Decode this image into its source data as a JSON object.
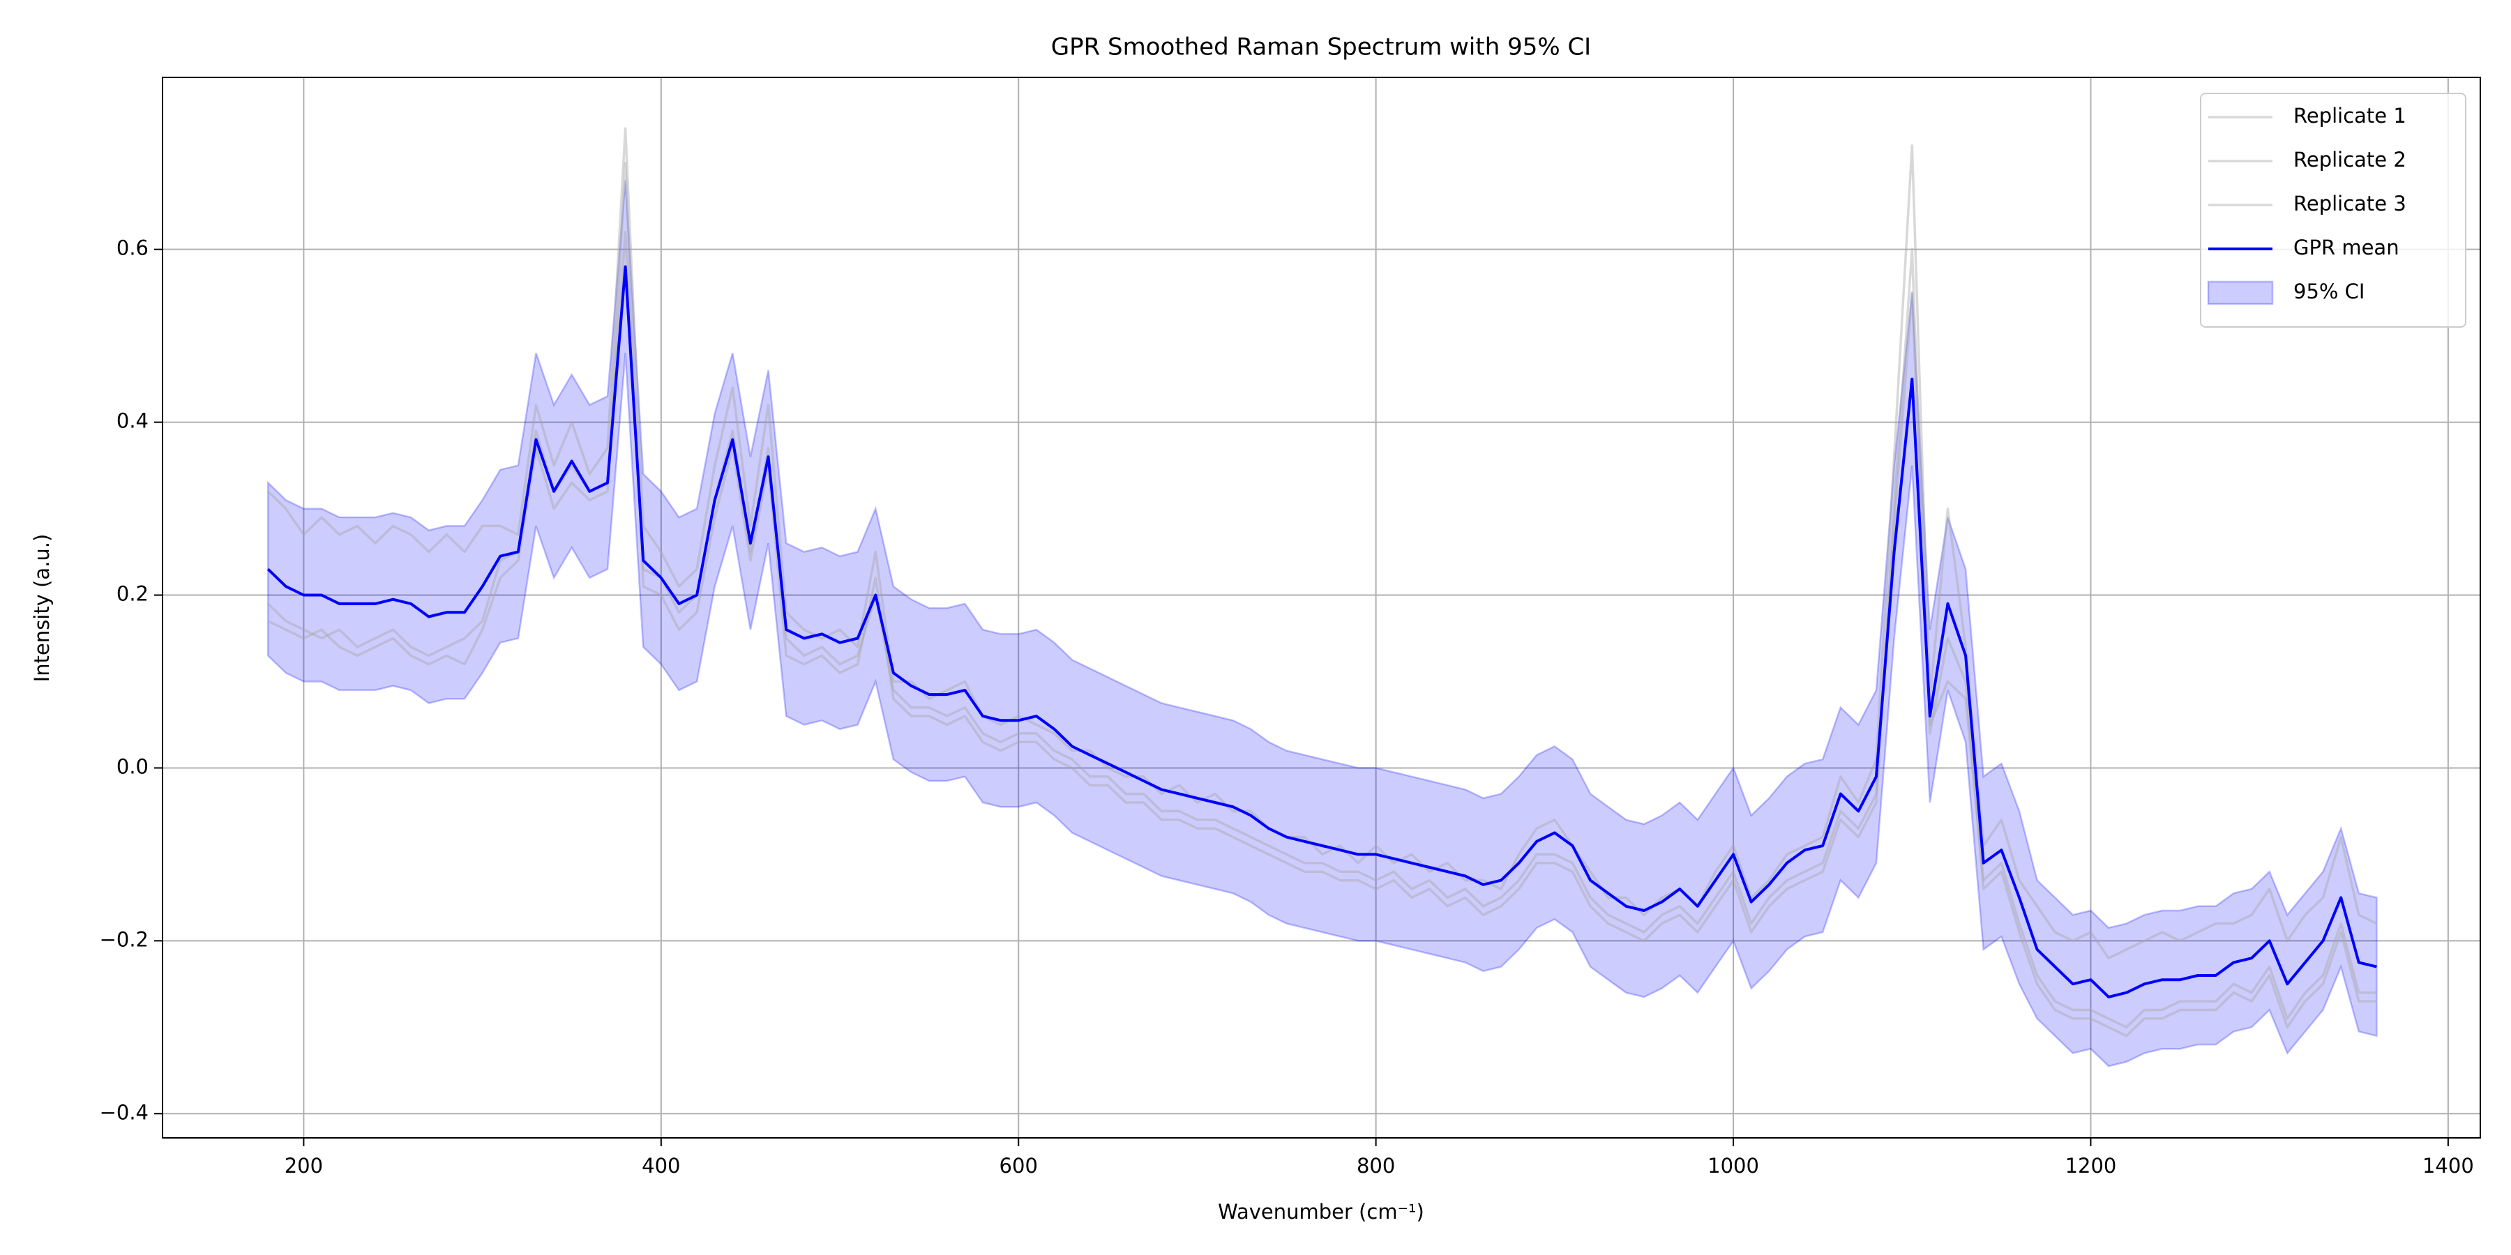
{
  "chart_data": {
    "type": "line",
    "title": "GPR Smoothed Raman Spectrum with 95% CI",
    "xlabel": "Wavenumber (cm⁻¹)",
    "ylabel": "Intensity (a.u.)",
    "xlim": [
      121,
      1418
    ],
    "ylim": [
      -0.428,
      0.799
    ],
    "xticks": [
      200,
      400,
      600,
      800,
      1000,
      1200,
      1400
    ],
    "yticks": [
      {
        "value": -0.4,
        "label": "−0.4"
      },
      {
        "value": -0.2,
        "label": "−0.2"
      },
      {
        "value": 0.0,
        "label": "0.0"
      },
      0.2,
      0.4,
      0.6
    ],
    "grid": true,
    "legend": "upper right",
    "x": [
      180,
      190,
      200,
      210,
      220,
      230,
      240,
      250,
      260,
      270,
      280,
      290,
      300,
      310,
      320,
      330,
      340,
      350,
      360,
      370,
      380,
      390,
      400,
      410,
      420,
      430,
      440,
      450,
      460,
      470,
      480,
      490,
      500,
      510,
      520,
      530,
      540,
      550,
      560,
      570,
      580,
      590,
      600,
      610,
      620,
      630,
      640,
      650,
      660,
      670,
      680,
      690,
      700,
      710,
      720,
      730,
      740,
      750,
      760,
      770,
      780,
      790,
      800,
      810,
      820,
      830,
      840,
      850,
      860,
      870,
      880,
      890,
      900,
      910,
      920,
      930,
      940,
      950,
      960,
      970,
      980,
      990,
      1000,
      1010,
      1020,
      1030,
      1040,
      1050,
      1060,
      1070,
      1080,
      1090,
      1100,
      1110,
      1120,
      1130,
      1140,
      1150,
      1160,
      1170,
      1180,
      1190,
      1200,
      1210,
      1220,
      1230,
      1240,
      1250,
      1260,
      1270,
      1280,
      1290,
      1300,
      1310,
      1320,
      1330,
      1340,
      1350,
      1360
    ],
    "series": [
      {
        "name": "Replicate 1",
        "color": "#a9a9a9",
        "values": [
          0.32,
          0.3,
          0.27,
          0.29,
          0.27,
          0.28,
          0.26,
          0.28,
          0.27,
          0.25,
          0.27,
          0.25,
          0.28,
          0.28,
          0.27,
          0.42,
          0.35,
          0.4,
          0.34,
          0.37,
          0.74,
          0.28,
          0.25,
          0.21,
          0.23,
          0.35,
          0.44,
          0.28,
          0.42,
          0.18,
          0.16,
          0.15,
          0.16,
          0.14,
          0.25,
          0.1,
          0.1,
          0.08,
          0.09,
          0.1,
          0.06,
          0.05,
          0.06,
          0.05,
          0.04,
          0.02,
          0.02,
          0,
          -0.01,
          -0.01,
          -0.03,
          -0.02,
          -0.04,
          -0.03,
          -0.05,
          -0.05,
          -0.07,
          -0.08,
          -0.08,
          -0.1,
          -0.09,
          -0.11,
          -0.09,
          -0.11,
          -0.1,
          -0.12,
          -0.11,
          -0.13,
          -0.13,
          -0.14,
          -0.1,
          -0.07,
          -0.06,
          -0.09,
          -0.12,
          -0.15,
          -0.15,
          -0.17,
          -0.15,
          -0.14,
          -0.16,
          -0.12,
          -0.09,
          -0.15,
          -0.13,
          -0.1,
          -0.09,
          -0.08,
          -0.01,
          -0.04,
          0.01,
          0.36,
          0.72,
          0.08,
          0.3,
          0.14,
          -0.09,
          -0.06,
          -0.13,
          -0.16,
          -0.19,
          -0.2,
          -0.19,
          -0.22,
          -0.21,
          -0.2,
          -0.19,
          -0.2,
          -0.19,
          -0.18,
          -0.18,
          -0.17,
          -0.14,
          -0.2,
          -0.17,
          -0.15,
          -0.08,
          -0.17,
          -0.18
        ]
      },
      {
        "name": "Replicate 2",
        "color": "#a9a9a9",
        "values": [
          0.17,
          0.16,
          0.15,
          0.16,
          0.14,
          0.13,
          0.14,
          0.15,
          0.13,
          0.12,
          0.13,
          0.12,
          0.16,
          0.22,
          0.24,
          0.37,
          0.3,
          0.33,
          0.31,
          0.32,
          0.7,
          0.21,
          0.2,
          0.16,
          0.18,
          0.29,
          0.37,
          0.24,
          0.35,
          0.13,
          0.12,
          0.13,
          0.11,
          0.12,
          0.22,
          0.08,
          0.06,
          0.06,
          0.05,
          0.06,
          0.03,
          0.02,
          0.03,
          0.03,
          0.01,
          0,
          -0.02,
          -0.02,
          -0.04,
          -0.04,
          -0.06,
          -0.06,
          -0.07,
          -0.07,
          -0.08,
          -0.09,
          -0.1,
          -0.11,
          -0.12,
          -0.12,
          -0.13,
          -0.13,
          -0.14,
          -0.13,
          -0.15,
          -0.14,
          -0.16,
          -0.15,
          -0.17,
          -0.16,
          -0.14,
          -0.11,
          -0.11,
          -0.12,
          -0.16,
          -0.18,
          -0.19,
          -0.2,
          -0.18,
          -0.17,
          -0.19,
          -0.16,
          -0.13,
          -0.19,
          -0.16,
          -0.14,
          -0.13,
          -0.12,
          -0.06,
          -0.08,
          -0.04,
          0.3,
          0.6,
          0.04,
          0.15,
          0.1,
          -0.14,
          -0.12,
          -0.19,
          -0.25,
          -0.28,
          -0.29,
          -0.29,
          -0.3,
          -0.31,
          -0.29,
          -0.29,
          -0.28,
          -0.28,
          -0.28,
          -0.26,
          -0.27,
          -0.24,
          -0.3,
          -0.27,
          -0.25,
          -0.19,
          -0.27,
          -0.27
        ]
      },
      {
        "name": "Replicate 3",
        "color": "#a9a9a9",
        "values": [
          0.19,
          0.17,
          0.16,
          0.15,
          0.16,
          0.14,
          0.15,
          0.16,
          0.14,
          0.13,
          0.14,
          0.15,
          0.17,
          0.24,
          0.25,
          0.39,
          0.32,
          0.35,
          0.32,
          0.33,
          0.62,
          0.23,
          0.22,
          0.18,
          0.2,
          0.31,
          0.39,
          0.25,
          0.37,
          0.15,
          0.13,
          0.14,
          0.12,
          0.13,
          0.2,
          0.09,
          0.07,
          0.07,
          0.06,
          0.07,
          0.04,
          0.03,
          0.04,
          0.04,
          0.02,
          0.01,
          -0.01,
          -0.01,
          -0.03,
          -0.03,
          -0.05,
          -0.05,
          -0.06,
          -0.06,
          -0.07,
          -0.08,
          -0.09,
          -0.1,
          -0.11,
          -0.11,
          -0.12,
          -0.12,
          -0.13,
          -0.12,
          -0.14,
          -0.13,
          -0.15,
          -0.14,
          -0.16,
          -0.15,
          -0.13,
          -0.1,
          -0.1,
          -0.11,
          -0.15,
          -0.17,
          -0.18,
          -0.19,
          -0.17,
          -0.16,
          -0.18,
          -0.15,
          -0.12,
          -0.18,
          -0.15,
          -0.13,
          -0.12,
          -0.11,
          -0.05,
          -0.07,
          -0.03,
          0.28,
          0.55,
          0.05,
          0.1,
          0.08,
          -0.13,
          -0.11,
          -0.18,
          -0.24,
          -0.27,
          -0.28,
          -0.28,
          -0.29,
          -0.3,
          -0.28,
          -0.28,
          -0.27,
          -0.27,
          -0.27,
          -0.25,
          -0.26,
          -0.23,
          -0.29,
          -0.26,
          -0.24,
          -0.18,
          -0.26,
          -0.26
        ]
      },
      {
        "name": "GPR mean",
        "color": "#0000ff",
        "values": [
          0.23,
          0.21,
          0.2,
          0.2,
          0.19,
          0.19,
          0.19,
          0.195,
          0.19,
          0.175,
          0.18,
          0.18,
          0.21,
          0.245,
          0.25,
          0.38,
          0.32,
          0.355,
          0.32,
          0.33,
          0.58,
          0.24,
          0.22,
          0.19,
          0.2,
          0.31,
          0.38,
          0.26,
          0.36,
          0.16,
          0.15,
          0.155,
          0.145,
          0.15,
          0.2,
          0.11,
          0.095,
          0.085,
          0.085,
          0.09,
          0.06,
          0.055,
          0.055,
          0.06,
          0.045,
          0.025,
          0.015,
          0.005,
          -0.005,
          -0.015,
          -0.025,
          -0.03,
          -0.035,
          -0.04,
          -0.045,
          -0.055,
          -0.07,
          -0.08,
          -0.085,
          -0.09,
          -0.095,
          -0.1,
          -0.1,
          -0.105,
          -0.11,
          -0.115,
          -0.12,
          -0.125,
          -0.135,
          -0.13,
          -0.11,
          -0.085,
          -0.075,
          -0.09,
          -0.13,
          -0.145,
          -0.16,
          -0.165,
          -0.155,
          -0.14,
          -0.16,
          -0.13,
          -0.1,
          -0.155,
          -0.135,
          -0.11,
          -0.095,
          -0.09,
          -0.03,
          -0.05,
          -0.01,
          0.25,
          0.45,
          0.06,
          0.19,
          0.13,
          -0.11,
          -0.095,
          -0.15,
          -0.21,
          -0.23,
          -0.25,
          -0.245,
          -0.265,
          -0.26,
          -0.25,
          -0.245,
          -0.245,
          -0.24,
          -0.24,
          -0.225,
          -0.22,
          -0.2,
          -0.25,
          -0.225,
          -0.2,
          -0.15,
          -0.225,
          -0.23
        ]
      }
    ],
    "band": {
      "name": "95% CI",
      "color": "#0000ff",
      "upper": [
        0.33,
        0.31,
        0.3,
        0.3,
        0.29,
        0.29,
        0.29,
        0.295,
        0.29,
        0.275,
        0.28,
        0.28,
        0.31,
        0.345,
        0.35,
        0.48,
        0.42,
        0.455,
        0.42,
        0.43,
        0.68,
        0.34,
        0.32,
        0.29,
        0.3,
        0.41,
        0.48,
        0.36,
        0.46,
        0.26,
        0.25,
        0.255,
        0.245,
        0.25,
        0.3,
        0.21,
        0.195,
        0.185,
        0.185,
        0.19,
        0.16,
        0.155,
        0.155,
        0.16,
        0.145,
        0.125,
        0.115,
        0.105,
        0.095,
        0.085,
        0.075,
        0.07,
        0.065,
        0.06,
        0.055,
        0.045,
        0.03,
        0.02,
        0.015,
        0.01,
        0.005,
        0,
        0,
        -0.005,
        -0.01,
        -0.015,
        -0.02,
        -0.025,
        -0.035,
        -0.03,
        -0.01,
        0.015,
        0.025,
        0.01,
        -0.03,
        -0.045,
        -0.06,
        -0.065,
        -0.055,
        -0.04,
        -0.06,
        -0.03,
        0,
        -0.055,
        -0.035,
        -0.01,
        0.005,
        0.01,
        0.07,
        0.05,
        0.09,
        0.35,
        0.55,
        0.16,
        0.29,
        0.23,
        -0.01,
        0.005,
        -0.05,
        -0.13,
        -0.15,
        -0.17,
        -0.165,
        -0.185,
        -0.18,
        -0.17,
        -0.165,
        -0.165,
        -0.16,
        -0.16,
        -0.145,
        -0.14,
        -0.12,
        -0.17,
        -0.145,
        -0.12,
        -0.07,
        -0.145,
        -0.15
      ],
      "lower": [
        0.13,
        0.11,
        0.1,
        0.1,
        0.09,
        0.09,
        0.09,
        0.095,
        0.09,
        0.075,
        0.08,
        0.08,
        0.11,
        0.145,
        0.15,
        0.28,
        0.22,
        0.255,
        0.22,
        0.23,
        0.48,
        0.14,
        0.12,
        0.09,
        0.1,
        0.21,
        0.28,
        0.16,
        0.26,
        0.06,
        0.05,
        0.055,
        0.045,
        0.05,
        0.1,
        0.01,
        -0.005,
        -0.015,
        -0.015,
        -0.01,
        -0.04,
        -0.045,
        -0.045,
        -0.04,
        -0.055,
        -0.075,
        -0.085,
        -0.095,
        -0.105,
        -0.115,
        -0.125,
        -0.13,
        -0.135,
        -0.14,
        -0.145,
        -0.155,
        -0.17,
        -0.18,
        -0.185,
        -0.19,
        -0.195,
        -0.2,
        -0.2,
        -0.205,
        -0.21,
        -0.215,
        -0.22,
        -0.225,
        -0.235,
        -0.23,
        -0.21,
        -0.185,
        -0.175,
        -0.19,
        -0.23,
        -0.245,
        -0.26,
        -0.265,
        -0.255,
        -0.24,
        -0.26,
        -0.23,
        -0.2,
        -0.255,
        -0.235,
        -0.21,
        -0.195,
        -0.19,
        -0.13,
        -0.15,
        -0.11,
        0.15,
        0.35,
        -0.04,
        0.09,
        0.03,
        -0.21,
        -0.195,
        -0.25,
        -0.29,
        -0.31,
        -0.33,
        -0.325,
        -0.345,
        -0.34,
        -0.33,
        -0.325,
        -0.325,
        -0.32,
        -0.32,
        -0.305,
        -0.3,
        -0.28,
        -0.33,
        -0.305,
        -0.28,
        -0.23,
        -0.305,
        -0.31
      ]
    }
  }
}
